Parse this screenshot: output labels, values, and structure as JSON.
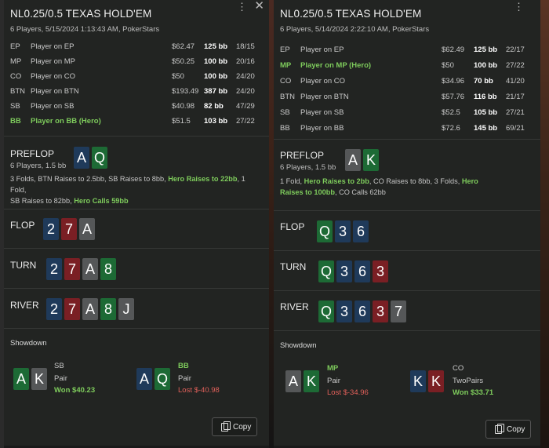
{
  "hands": [
    {
      "title": "NL0.25/0.5 TEXAS HOLD'EM",
      "subtitle": "6 Players, 5/15/2024 1:13:43 AM, PokerStars",
      "players": [
        {
          "pos": "EP",
          "name": "Player on EP",
          "stack": "$62.47",
          "bb": "125 bb",
          "stat": "18/15",
          "hero": false
        },
        {
          "pos": "MP",
          "name": "Player on MP",
          "stack": "$50.25",
          "bb": "100 bb",
          "stat": "20/16",
          "hero": false
        },
        {
          "pos": "CO",
          "name": "Player on CO",
          "stack": "$50",
          "bb": "100 bb",
          "stat": "24/20",
          "hero": false
        },
        {
          "pos": "BTN",
          "name": "Player on BTN",
          "stack": "$193.49",
          "bb": "387 bb",
          "stat": "24/20",
          "hero": false
        },
        {
          "pos": "SB",
          "name": "Player on SB",
          "stack": "$40.98",
          "bb": "82 bb",
          "stat": "47/29",
          "hero": false
        },
        {
          "pos": "BB",
          "name": "Player on BB (Hero)",
          "stack": "$51.5",
          "bb": "103 bb",
          "stat": "27/22",
          "hero": true
        }
      ],
      "preflop": {
        "label": "PREFLOP",
        "sub": "6 Players, 1.5 bb",
        "hero_cards": [
          {
            "r": "A",
            "c": "blue"
          },
          {
            "r": "Q",
            "c": "green"
          }
        ],
        "actions_1": "3 Folds, BTN Raises to 2.5bb, SB Raises to 8bb, ",
        "actions_hero_1": "Hero Raises to 22bb",
        "actions_2": ", 1 Fold,",
        "actions_3": "SB Raises to 82bb, ",
        "actions_hero_2": "Hero Calls 59bb"
      },
      "flop": {
        "label": "FLOP",
        "cards": [
          {
            "r": "2",
            "c": "blue"
          },
          {
            "r": "7",
            "c": "red"
          },
          {
            "r": "A",
            "c": "gray"
          }
        ]
      },
      "turn": {
        "label": "TURN",
        "cards": [
          {
            "r": "2",
            "c": "blue"
          },
          {
            "r": "7",
            "c": "red"
          },
          {
            "r": "A",
            "c": "gray"
          },
          {
            "r": "8",
            "c": "green"
          }
        ]
      },
      "river": {
        "label": "RIVER",
        "cards": [
          {
            "r": "2",
            "c": "blue"
          },
          {
            "r": "7",
            "c": "red"
          },
          {
            "r": "A",
            "c": "gray"
          },
          {
            "r": "8",
            "c": "green"
          },
          {
            "r": "J",
            "c": "gray"
          }
        ]
      },
      "showdown": {
        "label": "Showdown",
        "left": {
          "cards": [
            {
              "r": "A",
              "c": "green"
            },
            {
              "r": "K",
              "c": "gray"
            }
          ],
          "pos": "SB",
          "hand": "Pair",
          "result": "Won $40.23",
          "won": true,
          "hero": false
        },
        "right": {
          "cards": [
            {
              "r": "A",
              "c": "blue"
            },
            {
              "r": "Q",
              "c": "green"
            }
          ],
          "pos": "BB",
          "hand": "Pair",
          "result": "Lost $-40.98",
          "won": false,
          "hero": true
        }
      },
      "copy_label": "Copy"
    },
    {
      "title": "NL0.25/0.5 TEXAS HOLD'EM",
      "subtitle": "6 Players, 5/14/2024 2:22:10 AM, PokerStars",
      "players": [
        {
          "pos": "EP",
          "name": "Player on EP",
          "stack": "$62.49",
          "bb": "125 bb",
          "stat": "22/17",
          "hero": false
        },
        {
          "pos": "MP",
          "name": "Player on MP (Hero)",
          "stack": "$50",
          "bb": "100 bb",
          "stat": "27/22",
          "hero": true
        },
        {
          "pos": "CO",
          "name": "Player on CO",
          "stack": "$34.96",
          "bb": "70 bb",
          "stat": "41/20",
          "hero": false
        },
        {
          "pos": "BTN",
          "name": "Player on BTN",
          "stack": "$57.76",
          "bb": "116 bb",
          "stat": "21/17",
          "hero": false
        },
        {
          "pos": "SB",
          "name": "Player on SB",
          "stack": "$52.5",
          "bb": "105 bb",
          "stat": "27/21",
          "hero": false
        },
        {
          "pos": "BB",
          "name": "Player on BB",
          "stack": "$72.6",
          "bb": "145 bb",
          "stat": "69/21",
          "hero": false
        }
      ],
      "preflop": {
        "label": "PREFLOP",
        "sub": "6 Players, 1.5 bb",
        "hero_cards": [
          {
            "r": "A",
            "c": "gray"
          },
          {
            "r": "K",
            "c": "green"
          }
        ],
        "actions_1": "1 Fold, ",
        "actions_hero_1": "Hero Raises to 2bb",
        "actions_2": ", CO Raises to 8bb, 3 Folds, ",
        "actions_3_hero": "Hero",
        "actions_3": "Raises to 100bb",
        "actions_4": ", CO Calls 62bb"
      },
      "flop": {
        "label": "FLOP",
        "cards": [
          {
            "r": "Q",
            "c": "green"
          },
          {
            "r": "3",
            "c": "blue"
          },
          {
            "r": "6",
            "c": "blue"
          }
        ]
      },
      "turn": {
        "label": "TURN",
        "cards": [
          {
            "r": "Q",
            "c": "green"
          },
          {
            "r": "3",
            "c": "blue"
          },
          {
            "r": "6",
            "c": "blue"
          },
          {
            "r": "3",
            "c": "red"
          }
        ]
      },
      "river": {
        "label": "RIVER",
        "cards": [
          {
            "r": "Q",
            "c": "green"
          },
          {
            "r": "3",
            "c": "blue"
          },
          {
            "r": "6",
            "c": "blue"
          },
          {
            "r": "3",
            "c": "red"
          },
          {
            "r": "7",
            "c": "gray"
          }
        ]
      },
      "showdown": {
        "label": "Showdown",
        "left": {
          "cards": [
            {
              "r": "A",
              "c": "gray"
            },
            {
              "r": "K",
              "c": "green"
            }
          ],
          "pos": "MP",
          "hand": "Pair",
          "result": "Lost $-34.96",
          "won": false,
          "hero": true
        },
        "right": {
          "cards": [
            {
              "r": "K",
              "c": "blue"
            },
            {
              "r": "K",
              "c": "red"
            }
          ],
          "pos": "CO",
          "hand": "TwoPairs",
          "result": "Won $33.71",
          "won": true,
          "hero": false
        }
      },
      "copy_label": "Copy"
    }
  ]
}
